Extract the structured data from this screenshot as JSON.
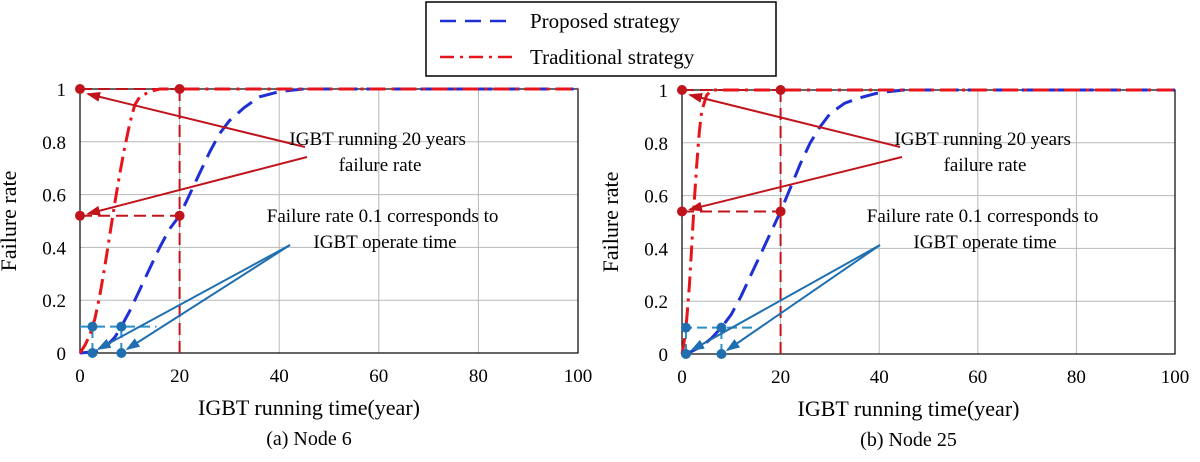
{
  "legend": {
    "position": "top-center",
    "entries": [
      {
        "label": "Proposed strategy",
        "color": "#1f2fd6",
        "style": "dashed"
      },
      {
        "label": "Traditional strategy",
        "color": "#e8141c",
        "style": "dash-dot"
      }
    ]
  },
  "chart_data": [
    {
      "type": "line",
      "caption": "(a) Node 6",
      "xlabel": "IGBT running time(year)",
      "ylabel": "Failure rate",
      "xlim": [
        0,
        100
      ],
      "ylim": [
        0,
        1
      ],
      "xticks": [
        0,
        20,
        40,
        60,
        80,
        100
      ],
      "yticks": [
        0,
        0.2,
        0.4,
        0.6,
        0.8,
        1
      ],
      "ytick_labels": [
        "0",
        "0.2",
        "0.4",
        "0.6",
        "0.8",
        "1"
      ],
      "grid": true,
      "series": [
        {
          "name": "Proposed strategy",
          "color": "#1f2fd6",
          "x": [
            0,
            3,
            5,
            7,
            8.3,
            10,
            12,
            14,
            16,
            18,
            20,
            22,
            24,
            26,
            28,
            30,
            33,
            36,
            40,
            45,
            50,
            60,
            70,
            80,
            90,
            100
          ],
          "y": [
            0,
            0.005,
            0.02,
            0.06,
            0.1,
            0.16,
            0.24,
            0.32,
            0.4,
            0.47,
            0.52,
            0.6,
            0.68,
            0.76,
            0.83,
            0.88,
            0.93,
            0.97,
            0.99,
            1,
            1,
            1,
            1,
            1,
            1,
            1
          ]
        },
        {
          "name": "Traditional strategy",
          "color": "#e8141c",
          "x": [
            0,
            1,
            2,
            2.5,
            3,
            4,
            5,
            6,
            7,
            8,
            9,
            10,
            11,
            12,
            14,
            16,
            18,
            20,
            30,
            40,
            60,
            80,
            100
          ],
          "y": [
            0,
            0.03,
            0.07,
            0.1,
            0.13,
            0.22,
            0.33,
            0.45,
            0.57,
            0.68,
            0.78,
            0.87,
            0.94,
            0.97,
            0.99,
            1,
            1,
            1,
            1,
            1,
            1,
            1,
            1
          ]
        }
      ],
      "markers_20yr": {
        "proposed_failure_rate": 0.52,
        "traditional_failure_rate": 1
      },
      "markers_0.1": {
        "traditional_time": 2.5,
        "proposed_time": 8.3
      },
      "annotations": [
        {
          "lines": [
            "IGBT running 20 years",
            "failure rate"
          ]
        },
        {
          "lines": [
            "Failure rate 0.1 corresponds to",
            "IGBT operate time"
          ]
        }
      ]
    },
    {
      "type": "line",
      "caption": "(b) Node 25",
      "xlabel": "IGBT running time(year)",
      "ylabel": "Failure rate",
      "xlim": [
        0,
        100
      ],
      "ylim": [
        0,
        1
      ],
      "xticks": [
        0,
        20,
        40,
        60,
        80,
        100
      ],
      "yticks": [
        0,
        0.2,
        0.4,
        0.6,
        0.8,
        1
      ],
      "ytick_labels": [
        "0",
        "0.2",
        "0.4",
        "0.6",
        "0.8",
        "1"
      ],
      "grid": true,
      "series": [
        {
          "name": "Proposed strategy",
          "color": "#1f2fd6",
          "x": [
            0,
            2,
            4,
            6,
            8,
            10,
            12,
            14,
            16,
            18,
            20,
            22,
            24,
            26,
            28,
            30,
            33,
            36,
            40,
            45,
            50,
            60,
            70,
            80,
            90,
            100
          ],
          "y": [
            0,
            0.01,
            0.03,
            0.06,
            0.1,
            0.15,
            0.22,
            0.3,
            0.38,
            0.46,
            0.54,
            0.63,
            0.72,
            0.8,
            0.86,
            0.91,
            0.95,
            0.97,
            0.99,
            1,
            1,
            1,
            1,
            1,
            1,
            1
          ]
        },
        {
          "name": "Traditional strategy",
          "color": "#e8141c",
          "x": [
            0,
            0.3,
            0.6,
            0.8,
            1,
            1.5,
            2,
            2.5,
            3,
            3.5,
            4,
            5,
            6,
            8,
            10,
            20,
            40,
            60,
            80,
            100
          ],
          "y": [
            0,
            0.03,
            0.07,
            0.1,
            0.14,
            0.26,
            0.42,
            0.58,
            0.72,
            0.84,
            0.92,
            0.98,
            1,
            1,
            1,
            1,
            1,
            1,
            1,
            1
          ]
        }
      ],
      "markers_20yr": {
        "proposed_failure_rate": 0.54,
        "traditional_failure_rate": 1
      },
      "markers_0.1": {
        "traditional_time": 0.8,
        "proposed_time": 8
      },
      "annotations": [
        {
          "lines": [
            "IGBT running 20 years",
            "failure rate"
          ]
        },
        {
          "lines": [
            "Failure rate 0.1 corresponds to",
            "IGBT operate time"
          ]
        }
      ]
    }
  ]
}
